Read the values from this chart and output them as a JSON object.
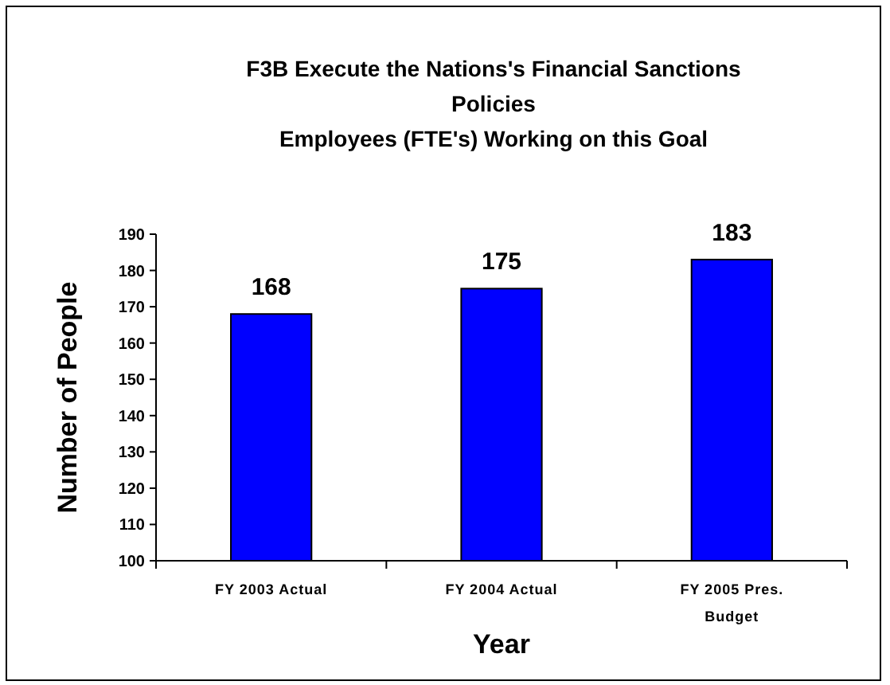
{
  "chart_data": {
    "type": "bar",
    "title": "F3B Execute the Nations's Financial Sanctions Policies",
    "subtitle": "Employees (FTE's) Working on this Goal",
    "xlabel": "Year",
    "ylabel": "Number of People",
    "categories": [
      "FY 2003 Actual",
      "FY 2004 Actual",
      "FY 2005 Pres. Budget"
    ],
    "values": [
      168,
      175,
      183
    ],
    "color": "#0000ff",
    "data_labels": true,
    "ylim": [
      100,
      190
    ],
    "yticks": [
      100,
      110,
      120,
      130,
      140,
      150,
      160,
      170,
      180,
      190
    ],
    "grid": false
  }
}
